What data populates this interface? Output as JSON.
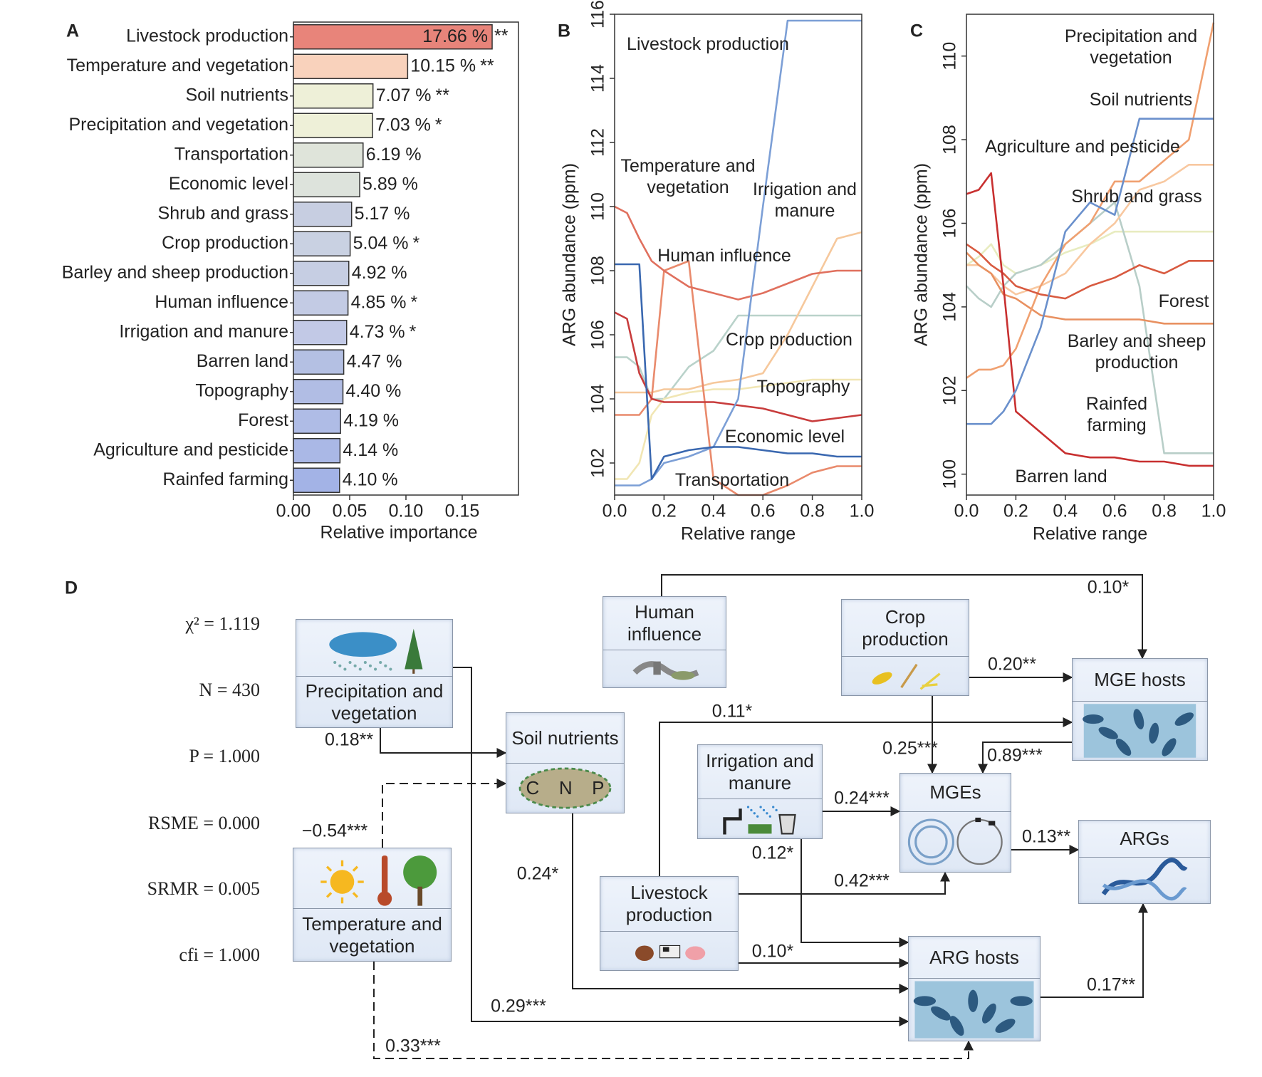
{
  "chart_data": [
    {
      "type": "barh",
      "panel": "A",
      "categories": [
        "Livestock production",
        "Temperature and vegetation",
        "Soil nutrients",
        "Precipitation and vegetation",
        "Transportation",
        "Economic level",
        "Shrub and grass",
        "Crop production",
        "Barley and sheep production",
        "Human influence",
        "Irrigation and manure",
        "Barren land",
        "Topography",
        "Forest",
        "Agriculture and pesticide",
        "Rainfed farming"
      ],
      "values": [
        0.1766,
        0.1015,
        0.0707,
        0.0703,
        0.0619,
        0.0589,
        0.0517,
        0.0504,
        0.0492,
        0.0485,
        0.0473,
        0.0447,
        0.044,
        0.0419,
        0.0414,
        0.041
      ],
      "value_labels": [
        "17.66 %",
        "10.15 %",
        "7.07 %",
        "7.03 %",
        "6.19 %",
        "5.89 %",
        "5.17 %",
        "5.04 %",
        "4.92 %",
        "4.85 %",
        "4.73 %",
        "4.47 %",
        "4.40 %",
        "4.19 %",
        "4.14 %",
        "4.10 %"
      ],
      "significance": [
        "**",
        "**",
        "**",
        "*",
        null,
        null,
        null,
        "*",
        null,
        "*",
        "*",
        null,
        null,
        null,
        null,
        null
      ],
      "colors": [
        "#e8847a",
        "#f9d2bc",
        "#eef0d8",
        "#eef0d8",
        "#dfe4da",
        "#dde3dc",
        "#c7cee1",
        "#c9d1e2",
        "#c6cee3",
        "#c3cbe4",
        "#c2c9e6",
        "#b4c0e3",
        "#b1bde4",
        "#afbce6",
        "#aab8e6",
        "#a3b3e6"
      ],
      "xlim": [
        0,
        0.2
      ],
      "xticks": [
        {
          "value": 0,
          "label": "0.00"
        },
        {
          "value": 0.05,
          "label": "0.05"
        },
        {
          "value": 0.1,
          "label": "0.10"
        },
        {
          "value": 0.15,
          "label": "0.15"
        }
      ],
      "xlabel": "Relative importance"
    },
    {
      "type": "line",
      "panel": "B",
      "xlabel": "Relative range",
      "ylabel": "ARG abundance (ppm)",
      "x": [
        0,
        0.05,
        0.1,
        0.15,
        0.2,
        0.3,
        0.4,
        0.5,
        0.6,
        0.7,
        0.8,
        0.9,
        1.0
      ],
      "xlim": [
        0,
        1
      ],
      "xticks": [
        {
          "value": 0,
          "label": "0.0"
        },
        0.2,
        0.4,
        0.6,
        0.8,
        {
          "value": 1,
          "label": "1.0"
        }
      ],
      "ylim": [
        101,
        116
      ],
      "yticks": [
        102,
        104,
        106,
        108,
        110,
        112,
        114,
        116
      ],
      "series": [
        {
          "name": "Crop production",
          "color": "#b9d2ca",
          "values": [
            105.3,
            105.3,
            105,
            104,
            104,
            105,
            105.5,
            106.6,
            106.6,
            106.6,
            106.6,
            106.6,
            106.6
          ]
        },
        {
          "name": "Topography",
          "color": "#f1e6b4",
          "values": [
            101.5,
            101.5,
            102,
            103.5,
            104,
            104.2,
            104.3,
            104.3,
            104.4,
            104.5,
            104.6,
            104.6,
            104.6
          ]
        },
        {
          "name": "Irrigation and manure",
          "color": "#f6c89c",
          "values": [
            104.2,
            104.2,
            104.2,
            104.2,
            104.3,
            104.3,
            104.5,
            104.6,
            104.8,
            106,
            107.5,
            109,
            109.2
          ]
        },
        {
          "name": "Human influence",
          "color": "#e98a6c",
          "values": [
            103.5,
            103.5,
            103.5,
            104,
            108,
            108.3,
            101.5,
            101,
            101,
            101.3,
            101.7,
            101.9,
            101.9
          ]
        },
        {
          "name": "Temperature and vegetation",
          "color": "#e0705e",
          "values": [
            110,
            109.8,
            109,
            108.3,
            108,
            107.5,
            107.3,
            107.1,
            107.3,
            107.6,
            107.9,
            108,
            108
          ]
        },
        {
          "name": "Economic level",
          "color": "#c83c3c",
          "values": [
            106.7,
            106.5,
            104.8,
            104,
            103.9,
            103.9,
            103.9,
            103.8,
            103.7,
            103.5,
            103.3,
            103.4,
            103.5
          ]
        },
        {
          "name": "Livestock production",
          "color": "#7c9fd6",
          "values": [
            101.3,
            101.3,
            101.3,
            101.5,
            102,
            102.2,
            102.5,
            104,
            110,
            115.8,
            115.8,
            115.8,
            115.8
          ]
        },
        {
          "name": "Transportation",
          "color": "#3a68b0",
          "values": [
            108.2,
            108.2,
            108.2,
            101.5,
            102.2,
            102.4,
            102.5,
            102.5,
            102.4,
            102.3,
            102.3,
            102.2,
            102.2
          ]
        }
      ]
    },
    {
      "type": "line",
      "panel": "C",
      "xlabel": "Relative range",
      "ylabel": "ARG abundance (ppm)",
      "x": [
        0,
        0.05,
        0.1,
        0.15,
        0.2,
        0.3,
        0.4,
        0.5,
        0.6,
        0.7,
        0.8,
        0.9,
        1.0
      ],
      "xlim": [
        0,
        1
      ],
      "xticks": [
        {
          "value": 0,
          "label": "0.0"
        },
        0.2,
        0.4,
        0.6,
        0.8,
        {
          "value": 1,
          "label": "1.0"
        }
      ],
      "ylim": [
        99.5,
        111
      ],
      "yticks": [
        100,
        102,
        104,
        106,
        108,
        110
      ],
      "series": [
        {
          "name": "Shrub and grass",
          "color": "#e8ecc0",
          "values": [
            105,
            105.2,
            105.5,
            105,
            104.8,
            105,
            105.3,
            105.5,
            105.8,
            105.8,
            105.8,
            105.8,
            105.8
          ]
        },
        {
          "name": "Rainfed farming",
          "color": "#b8cec8",
          "values": [
            104.5,
            104.2,
            104,
            104.5,
            104.8,
            105,
            105.5,
            106,
            106.5,
            104.5,
            100.5,
            100.5,
            100.5
          ]
        },
        {
          "name": "Agriculture and pesticide",
          "color": "#f8c8a0",
          "values": [
            105,
            105,
            104.8,
            104.5,
            104.3,
            104.5,
            104.8,
            105.5,
            106,
            106.8,
            107,
            107.4,
            107.4
          ]
        },
        {
          "name": "Barley and sheep production",
          "color": "#e89060",
          "values": [
            105.3,
            105,
            104.8,
            104.3,
            104.2,
            103.8,
            103.7,
            103.7,
            103.7,
            103.7,
            103.6,
            103.6,
            103.6
          ]
        },
        {
          "name": "Precipitation and vegetation",
          "color": "#f0a070",
          "values": [
            102.3,
            102.5,
            102.5,
            102.6,
            103,
            104.5,
            105.5,
            106,
            107,
            107,
            107.5,
            108,
            110.8
          ]
        },
        {
          "name": "Forest",
          "color": "#d85a40",
          "values": [
            105.5,
            105.3,
            105,
            104.8,
            104.5,
            104.3,
            104.2,
            104.5,
            104.7,
            105,
            104.8,
            105.1,
            105.1
          ]
        },
        {
          "name": "Barren land",
          "color": "#c83030",
          "values": [
            106.7,
            106.8,
            107.2,
            104.5,
            101.5,
            101,
            100.5,
            100.4,
            100.4,
            100.3,
            100.3,
            100.2,
            100.2
          ]
        },
        {
          "name": "Soil nutrients",
          "color": "#6a90cc",
          "values": [
            101.2,
            101.2,
            101.2,
            101.5,
            102,
            103.5,
            105.8,
            106.5,
            106.2,
            108.5,
            108.5,
            108.5,
            108.5
          ]
        }
      ]
    }
  ],
  "diagram": {
    "panel": "D",
    "stats": [
      "χ² = 1.119",
      "N = 430",
      "P = 1.000",
      "RSME = 0.000",
      "SRMR = 0.005",
      "cfi = 1.000"
    ],
    "nodes": [
      {
        "label": "Precipitation and vegetation"
      },
      {
        "label": "Temperature and vegetation"
      },
      {
        "label": "Soil nutrients",
        "icon_text": [
          "C",
          "N",
          "P"
        ]
      },
      {
        "label": "Human influence"
      },
      {
        "label": "Crop production"
      },
      {
        "label": "MGE hosts"
      },
      {
        "label": "Irrigation and manure"
      },
      {
        "label": "MGEs"
      },
      {
        "label": "ARGs"
      },
      {
        "label": "Livestock production"
      },
      {
        "label": "ARG hosts"
      }
    ],
    "edges": [
      {
        "label": "0.18**",
        "dashed": false
      },
      {
        "label": "−0.54***",
        "dashed": true
      },
      {
        "label": "0.29***",
        "dashed": false
      },
      {
        "label": "0.33***",
        "dashed": true
      },
      {
        "label": "0.24*",
        "dashed": false
      },
      {
        "label": "0.10*",
        "dashed": false
      },
      {
        "label": "0.20**",
        "dashed": false
      },
      {
        "label": "0.25***",
        "dashed": false
      },
      {
        "label": "0.11*",
        "dashed": false
      },
      {
        "label": "0.89***",
        "dashed": false
      },
      {
        "label": "0.24***",
        "dashed": false
      },
      {
        "label": "0.12*",
        "dashed": false
      },
      {
        "label": "0.42***",
        "dashed": false
      },
      {
        "label": "0.10*",
        "dashed": false
      },
      {
        "label": "0.13**",
        "dashed": false
      },
      {
        "label": "0.17**",
        "dashed": false
      }
    ]
  }
}
